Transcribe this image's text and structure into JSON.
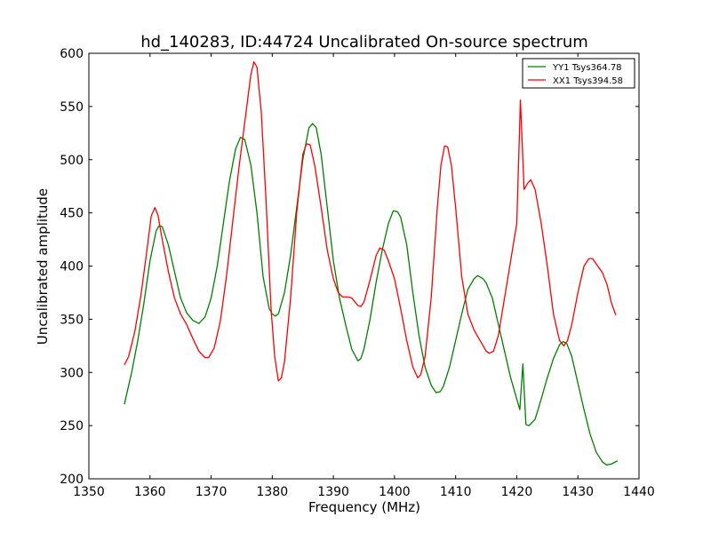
{
  "chart_data": {
    "type": "line",
    "title": "hd_140283, ID:44724 Uncalibrated On-source spectrum",
    "xlabel": "Frequency (MHz)",
    "ylabel": "Uncalibrated amplitude",
    "xlim": [
      1350,
      1440
    ],
    "ylim": [
      200,
      600
    ],
    "xticks": [
      1350,
      1360,
      1370,
      1380,
      1390,
      1400,
      1410,
      1420,
      1430,
      1440
    ],
    "yticks": [
      200,
      250,
      300,
      350,
      400,
      450,
      500,
      550,
      600
    ],
    "grid": false,
    "legend": "top-right",
    "series": [
      {
        "name": "YY1 Tsys364.78",
        "color": "#008000",
        "points": [
          [
            1355.8,
            270
          ],
          [
            1357.0,
            300
          ],
          [
            1358.0,
            330
          ],
          [
            1359.0,
            365
          ],
          [
            1360.0,
            405
          ],
          [
            1361.0,
            433
          ],
          [
            1361.5,
            438
          ],
          [
            1362.0,
            437
          ],
          [
            1363.0,
            420
          ],
          [
            1364.0,
            395
          ],
          [
            1365.0,
            370
          ],
          [
            1366.0,
            356
          ],
          [
            1367.0,
            349
          ],
          [
            1368.0,
            346
          ],
          [
            1369.0,
            352
          ],
          [
            1370.0,
            370
          ],
          [
            1371.0,
            400
          ],
          [
            1372.0,
            440
          ],
          [
            1373.0,
            480
          ],
          [
            1374.0,
            510
          ],
          [
            1374.8,
            521
          ],
          [
            1375.5,
            519
          ],
          [
            1376.5,
            495
          ],
          [
            1377.5,
            450
          ],
          [
            1378.5,
            390
          ],
          [
            1379.5,
            360
          ],
          [
            1380.0,
            355
          ],
          [
            1380.5,
            353
          ],
          [
            1381.0,
            355
          ],
          [
            1382.0,
            375
          ],
          [
            1383.0,
            410
          ],
          [
            1384.0,
            455
          ],
          [
            1385.0,
            500
          ],
          [
            1386.0,
            530
          ],
          [
            1386.6,
            534
          ],
          [
            1387.2,
            530
          ],
          [
            1388.0,
            505
          ],
          [
            1389.0,
            455
          ],
          [
            1390.0,
            405
          ],
          [
            1391.0,
            370
          ],
          [
            1392.0,
            345
          ],
          [
            1393.0,
            322
          ],
          [
            1394.0,
            311
          ],
          [
            1394.5,
            313
          ],
          [
            1395.0,
            322
          ],
          [
            1396.0,
            350
          ],
          [
            1397.0,
            385
          ],
          [
            1398.0,
            415
          ],
          [
            1399.0,
            440
          ],
          [
            1399.8,
            452
          ],
          [
            1400.5,
            451
          ],
          [
            1401.0,
            446
          ],
          [
            1402.0,
            420
          ],
          [
            1403.0,
            375
          ],
          [
            1404.0,
            335
          ],
          [
            1405.0,
            305
          ],
          [
            1406.0,
            288
          ],
          [
            1406.8,
            281
          ],
          [
            1407.5,
            282
          ],
          [
            1408.0,
            287
          ],
          [
            1409.0,
            305
          ],
          [
            1410.0,
            330
          ],
          [
            1411.0,
            355
          ],
          [
            1412.0,
            378
          ],
          [
            1413.0,
            388
          ],
          [
            1413.6,
            391
          ],
          [
            1414.5,
            388
          ],
          [
            1415.0,
            384
          ],
          [
            1416.0,
            370
          ],
          [
            1417.0,
            345
          ],
          [
            1418.0,
            320
          ],
          [
            1419.0,
            295
          ],
          [
            1420.0,
            275
          ],
          [
            1420.5,
            265
          ],
          [
            1421.0,
            308
          ],
          [
            1421.5,
            251
          ],
          [
            1422.0,
            250
          ],
          [
            1423.0,
            256
          ],
          [
            1424.0,
            275
          ],
          [
            1425.0,
            295
          ],
          [
            1426.0,
            313
          ],
          [
            1427.0,
            326
          ],
          [
            1427.6,
            329
          ],
          [
            1428.2,
            327
          ],
          [
            1429.0,
            315
          ],
          [
            1430.0,
            290
          ],
          [
            1431.0,
            265
          ],
          [
            1432.0,
            242
          ],
          [
            1433.0,
            225
          ],
          [
            1434.0,
            216
          ],
          [
            1434.7,
            213
          ],
          [
            1435.5,
            214
          ],
          [
            1436.5,
            217
          ]
        ]
      },
      {
        "name": "XX1 Tsys394.58",
        "color": "#ff0000",
        "points": [
          [
            1355.8,
            307
          ],
          [
            1356.5,
            315
          ],
          [
            1357.5,
            338
          ],
          [
            1358.5,
            372
          ],
          [
            1359.5,
            415
          ],
          [
            1360.2,
            447
          ],
          [
            1360.8,
            455
          ],
          [
            1361.3,
            448
          ],
          [
            1362.0,
            425
          ],
          [
            1363.0,
            395
          ],
          [
            1364.0,
            370
          ],
          [
            1365.0,
            355
          ],
          [
            1366.0,
            345
          ],
          [
            1367.0,
            332
          ],
          [
            1368.0,
            320
          ],
          [
            1369.0,
            314
          ],
          [
            1369.6,
            314
          ],
          [
            1370.5,
            323
          ],
          [
            1371.5,
            348
          ],
          [
            1372.5,
            390
          ],
          [
            1373.5,
            440
          ],
          [
            1374.5,
            490
          ],
          [
            1375.5,
            535
          ],
          [
            1376.5,
            580
          ],
          [
            1377.0,
            592
          ],
          [
            1377.5,
            587
          ],
          [
            1378.2,
            545
          ],
          [
            1379.0,
            460
          ],
          [
            1379.8,
            360
          ],
          [
            1380.4,
            315
          ],
          [
            1381.0,
            292
          ],
          [
            1381.5,
            295
          ],
          [
            1382.0,
            310
          ],
          [
            1383.0,
            370
          ],
          [
            1384.0,
            450
          ],
          [
            1385.0,
            505
          ],
          [
            1385.6,
            515
          ],
          [
            1386.2,
            514
          ],
          [
            1387.0,
            493
          ],
          [
            1388.0,
            455
          ],
          [
            1389.0,
            415
          ],
          [
            1390.0,
            388
          ],
          [
            1390.8,
            375
          ],
          [
            1391.5,
            371
          ],
          [
            1392.5,
            371
          ],
          [
            1393.0,
            370
          ],
          [
            1394.0,
            363
          ],
          [
            1394.5,
            362
          ],
          [
            1395.0,
            366
          ],
          [
            1396.0,
            387
          ],
          [
            1397.0,
            410
          ],
          [
            1397.6,
            417
          ],
          [
            1398.3,
            415
          ],
          [
            1399.0,
            405
          ],
          [
            1400.0,
            388
          ],
          [
            1401.0,
            360
          ],
          [
            1402.0,
            330
          ],
          [
            1403.0,
            305
          ],
          [
            1403.8,
            295
          ],
          [
            1404.3,
            298
          ],
          [
            1405.0,
            315
          ],
          [
            1406.0,
            370
          ],
          [
            1407.0,
            455
          ],
          [
            1407.6,
            495
          ],
          [
            1408.2,
            513
          ],
          [
            1408.7,
            512
          ],
          [
            1409.3,
            495
          ],
          [
            1410.0,
            455
          ],
          [
            1411.0,
            390
          ],
          [
            1412.0,
            355
          ],
          [
            1413.0,
            340
          ],
          [
            1414.0,
            330
          ],
          [
            1415.0,
            320
          ],
          [
            1415.5,
            318
          ],
          [
            1416.2,
            320
          ],
          [
            1417.0,
            335
          ],
          [
            1418.0,
            370
          ],
          [
            1419.0,
            405
          ],
          [
            1420.0,
            440
          ],
          [
            1420.6,
            556
          ],
          [
            1421.2,
            472
          ],
          [
            1421.8,
            478
          ],
          [
            1422.3,
            481
          ],
          [
            1423.0,
            472
          ],
          [
            1424.0,
            440
          ],
          [
            1425.0,
            400
          ],
          [
            1426.0,
            355
          ],
          [
            1427.0,
            330
          ],
          [
            1427.7,
            325
          ],
          [
            1428.3,
            330
          ],
          [
            1429.0,
            345
          ],
          [
            1430.0,
            375
          ],
          [
            1431.0,
            400
          ],
          [
            1431.8,
            407
          ],
          [
            1432.4,
            407
          ],
          [
            1433.0,
            402
          ],
          [
            1434.0,
            394
          ],
          [
            1434.8,
            382
          ],
          [
            1435.5,
            365
          ],
          [
            1436.2,
            354
          ]
        ]
      }
    ]
  }
}
